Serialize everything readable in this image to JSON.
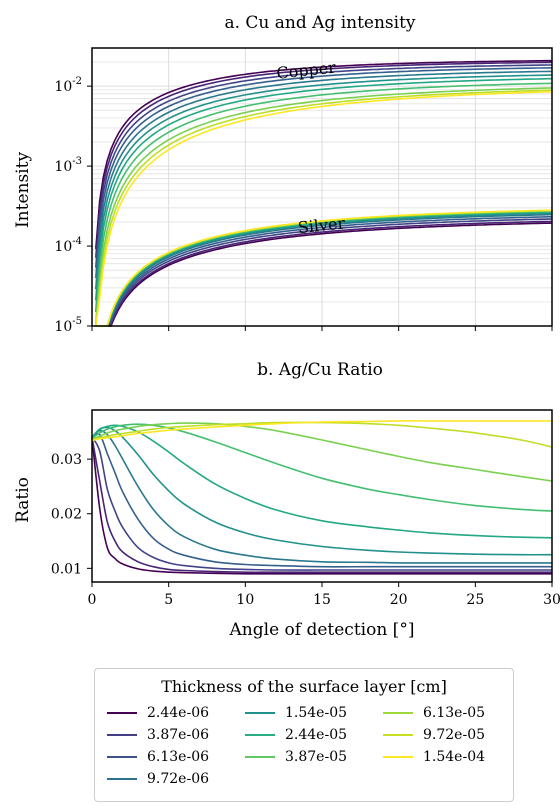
{
  "chart_data": [
    {
      "type": "line",
      "title": "a. Cu and Ag intensity",
      "xlabel": "",
      "ylabel": "Intensity",
      "yscale": "log",
      "xlim": [
        0,
        30
      ],
      "ylim": [
        1e-05,
        0.03
      ],
      "y_ticks": [
        {
          "value": 1e-05,
          "base": "10",
          "exp": "-5"
        },
        {
          "value": 0.0001,
          "base": "10",
          "exp": "-4"
        },
        {
          "value": 0.001,
          "base": "10",
          "exp": "-3"
        },
        {
          "value": 0.01,
          "base": "10",
          "exp": "-2"
        }
      ],
      "x_ticks": [
        0,
        5,
        10,
        15,
        20,
        25,
        30
      ],
      "grid": true,
      "annotations": [
        {
          "text": "Copper",
          "x": 14,
          "y": 0.0135
        },
        {
          "text": "Silver",
          "x": 15,
          "y": 0.000155
        }
      ],
      "series_groups": [
        {
          "name": "Copper",
          "x": [
            0.5,
            1,
            2,
            3,
            5,
            7,
            10,
            15,
            20,
            25,
            30
          ],
          "endpoint_at_30": [
            0.0215,
            0.0205,
            0.019,
            0.0175,
            0.0158,
            0.0142,
            0.0128,
            0.0112,
            0.0098,
            0.0092,
            0.0088
          ]
        },
        {
          "name": "Silver",
          "x": [
            0.5,
            1,
            2,
            3,
            5,
            7,
            10,
            15,
            20,
            25,
            30
          ],
          "endpoint_at_30": [
            0.0002,
            0.00021,
            0.000225,
            0.00024,
            0.000255,
            0.000265,
            0.000275,
            0.00028,
            0.000285,
            0.000288,
            0.00029
          ]
        }
      ]
    },
    {
      "type": "line",
      "title": "b. Ag/Cu Ratio",
      "xlabel": "Angle of detection [°]",
      "ylabel": "Ratio",
      "xlim": [
        0,
        30
      ],
      "ylim": [
        0.0075,
        0.039
      ],
      "x_ticks": [
        0,
        5,
        10,
        15,
        20,
        25,
        30
      ],
      "y_ticks": [
        0.01,
        0.02,
        0.03
      ],
      "grid": false,
      "x": [
        0,
        0.5,
        1,
        1.5,
        2,
        3,
        4,
        5,
        6,
        8,
        10,
        12,
        15,
        18,
        20,
        22,
        25,
        28,
        30
      ],
      "series": [
        {
          "name": "2.44e-06",
          "values": [
            0.034,
            0.021,
            0.0138,
            0.0118,
            0.0108,
            0.0099,
            0.0095,
            0.0093,
            0.0092,
            0.0091,
            0.009,
            0.009,
            0.009,
            0.009,
            0.009,
            0.009,
            0.009,
            0.009,
            0.009
          ]
        },
        {
          "name": "3.87e-06",
          "values": [
            0.034,
            0.026,
            0.0185,
            0.015,
            0.013,
            0.0112,
            0.0103,
            0.0098,
            0.0096,
            0.0094,
            0.0093,
            0.0093,
            0.0093,
            0.0093,
            0.0093,
            0.0093,
            0.0093,
            0.0093,
            0.0093
          ]
        },
        {
          "name": "6.13e-06",
          "values": [
            0.034,
            0.0315,
            0.0245,
            0.0205,
            0.0175,
            0.0138,
            0.012,
            0.011,
            0.0105,
            0.01,
            0.0098,
            0.0097,
            0.0097,
            0.0097,
            0.0097,
            0.0097,
            0.0097,
            0.0097,
            0.0097
          ]
        },
        {
          "name": "9.72e-06",
          "values": [
            0.034,
            0.0345,
            0.031,
            0.0275,
            0.024,
            0.019,
            0.0155,
            0.0135,
            0.0124,
            0.0112,
            0.0107,
            0.0105,
            0.0103,
            0.0103,
            0.0103,
            0.0103,
            0.0103,
            0.0103,
            0.0103
          ]
        },
        {
          "name": "1.54e-05",
          "values": [
            0.034,
            0.0352,
            0.0345,
            0.0325,
            0.03,
            0.025,
            0.0208,
            0.0178,
            0.0158,
            0.0135,
            0.0124,
            0.0117,
            0.0112,
            0.0111,
            0.011,
            0.011,
            0.011,
            0.011,
            0.011
          ]
        },
        {
          "name": "2.44e-05",
          "values": [
            0.034,
            0.0355,
            0.0358,
            0.0352,
            0.034,
            0.0308,
            0.0272,
            0.0242,
            0.0218,
            0.0185,
            0.0165,
            0.0152,
            0.014,
            0.0133,
            0.013,
            0.0128,
            0.0126,
            0.0125,
            0.0125
          ]
        },
        {
          "name": "3.87e-05",
          "values": [
            0.034,
            0.0354,
            0.036,
            0.0362,
            0.036,
            0.035,
            0.0333,
            0.0313,
            0.0292,
            0.0255,
            0.0228,
            0.0207,
            0.0187,
            0.0176,
            0.017,
            0.0165,
            0.016,
            0.0157,
            0.0156
          ]
        },
        {
          "name": "6.13e-05",
          "values": [
            0.0338,
            0.0348,
            0.0355,
            0.0359,
            0.0362,
            0.0364,
            0.0362,
            0.0357,
            0.035,
            0.0332,
            0.0312,
            0.0292,
            0.0265,
            0.0245,
            0.0235,
            0.0226,
            0.0215,
            0.0208,
            0.0205
          ]
        },
        {
          "name": "9.72e-05",
          "values": [
            0.0336,
            0.0342,
            0.0348,
            0.0352,
            0.0355,
            0.036,
            0.0363,
            0.0365,
            0.0366,
            0.0365,
            0.036,
            0.0352,
            0.0335,
            0.0317,
            0.0305,
            0.0294,
            0.0281,
            0.0268,
            0.026
          ]
        },
        {
          "name": "1.54e-04",
          "values": [
            0.0335,
            0.0339,
            0.0342,
            0.0345,
            0.0347,
            0.0351,
            0.0355,
            0.0358,
            0.036,
            0.0363,
            0.0365,
            0.0367,
            0.0367,
            0.0365,
            0.0362,
            0.0357,
            0.0348,
            0.0335,
            0.0322
          ]
        },
        {
          "name": "",
          "values": [
            0.0334,
            0.0337,
            0.0339,
            0.0341,
            0.0343,
            0.0347,
            0.035,
            0.0353,
            0.0355,
            0.0359,
            0.0362,
            0.0365,
            0.0368,
            0.0369,
            0.037,
            0.037,
            0.037,
            0.037,
            0.037
          ]
        }
      ]
    }
  ],
  "legend": {
    "title": "Thickness of the surface layer [cm]",
    "entries": [
      {
        "label": "2.44e-06",
        "color": "#440154"
      },
      {
        "label": "3.87e-06",
        "color": "#433e85"
      },
      {
        "label": "6.13e-06",
        "color": "#3b528b"
      },
      {
        "label": "9.72e-06",
        "color": "#2c728e"
      },
      {
        "label": "1.54e-05",
        "color": "#21918c"
      },
      {
        "label": "2.44e-05",
        "color": "#28ae80"
      },
      {
        "label": "3.87e-05",
        "color": "#5ec962"
      },
      {
        "label": "6.13e-05",
        "color": "#9fd83b"
      },
      {
        "label": "9.72e-05",
        "color": "#c8e020"
      },
      {
        "label": "1.54e-04",
        "color": "#fde725"
      }
    ]
  },
  "colors": [
    "#440154",
    "#482475",
    "#414487",
    "#355f8d",
    "#2a788e",
    "#21918c",
    "#22a884",
    "#44bf70",
    "#7ad151",
    "#bddf26",
    "#fde725"
  ]
}
